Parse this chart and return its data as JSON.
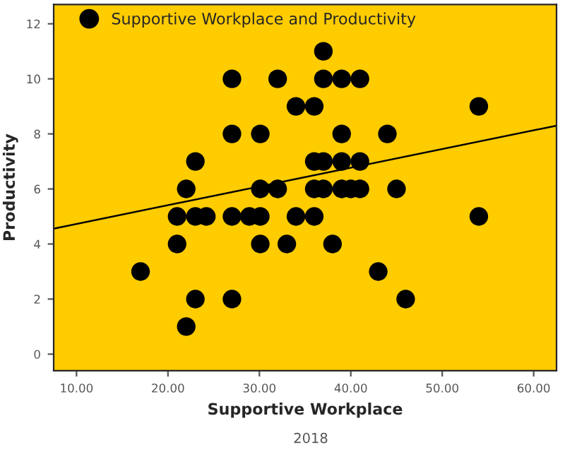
{
  "chart_data": {
    "type": "scatter",
    "xlabel": "Supportive Workplace",
    "ylabel": "Productivity",
    "series": [
      {
        "name": "Supportive Workplace and Productivity",
        "marker": "circle",
        "color": "#000000",
        "x": [
          17,
          22,
          23,
          27,
          21,
          21,
          23,
          24.2,
          27,
          28.9,
          30.1,
          22,
          23,
          27,
          30.1,
          27,
          32,
          34,
          30.1,
          32,
          30.1,
          33,
          34,
          37,
          37,
          39,
          41,
          36,
          54,
          39,
          44,
          36,
          37,
          39,
          41,
          36,
          37,
          39,
          40,
          41,
          45,
          36,
          54,
          38,
          43,
          46
        ],
        "values": [
          3,
          1,
          2,
          2,
          4,
          5,
          5,
          5,
          5,
          5,
          5,
          6,
          7,
          8,
          8,
          10,
          10,
          9,
          6,
          6,
          4,
          4,
          5,
          11,
          10,
          10,
          10,
          9,
          9,
          8,
          8,
          7,
          7,
          7,
          7,
          6,
          6,
          6,
          6,
          6,
          6,
          5,
          5,
          4,
          3,
          2
        ]
      },
      {
        "type": "line",
        "color": "#000000",
        "x": [
          7.5,
          62.5
        ],
        "values": [
          4.56,
          8.3
        ]
      }
    ],
    "xlim": [
      7.5,
      62.5
    ],
    "ylim": [
      -0.6,
      12.7
    ],
    "xticks": [
      {
        "value": 10,
        "label": "10.00"
      },
      {
        "value": 20,
        "label": "20.00"
      },
      {
        "value": 30,
        "label": "30.00"
      },
      {
        "value": 40,
        "label": "40.00"
      },
      {
        "value": 50,
        "label": "50.00"
      },
      {
        "value": 60,
        "label": "60.00"
      }
    ],
    "yticks": [
      0,
      2,
      4,
      6,
      8,
      10,
      12
    ],
    "legend": "top",
    "grid": false,
    "annotations": [
      "2018"
    ]
  }
}
